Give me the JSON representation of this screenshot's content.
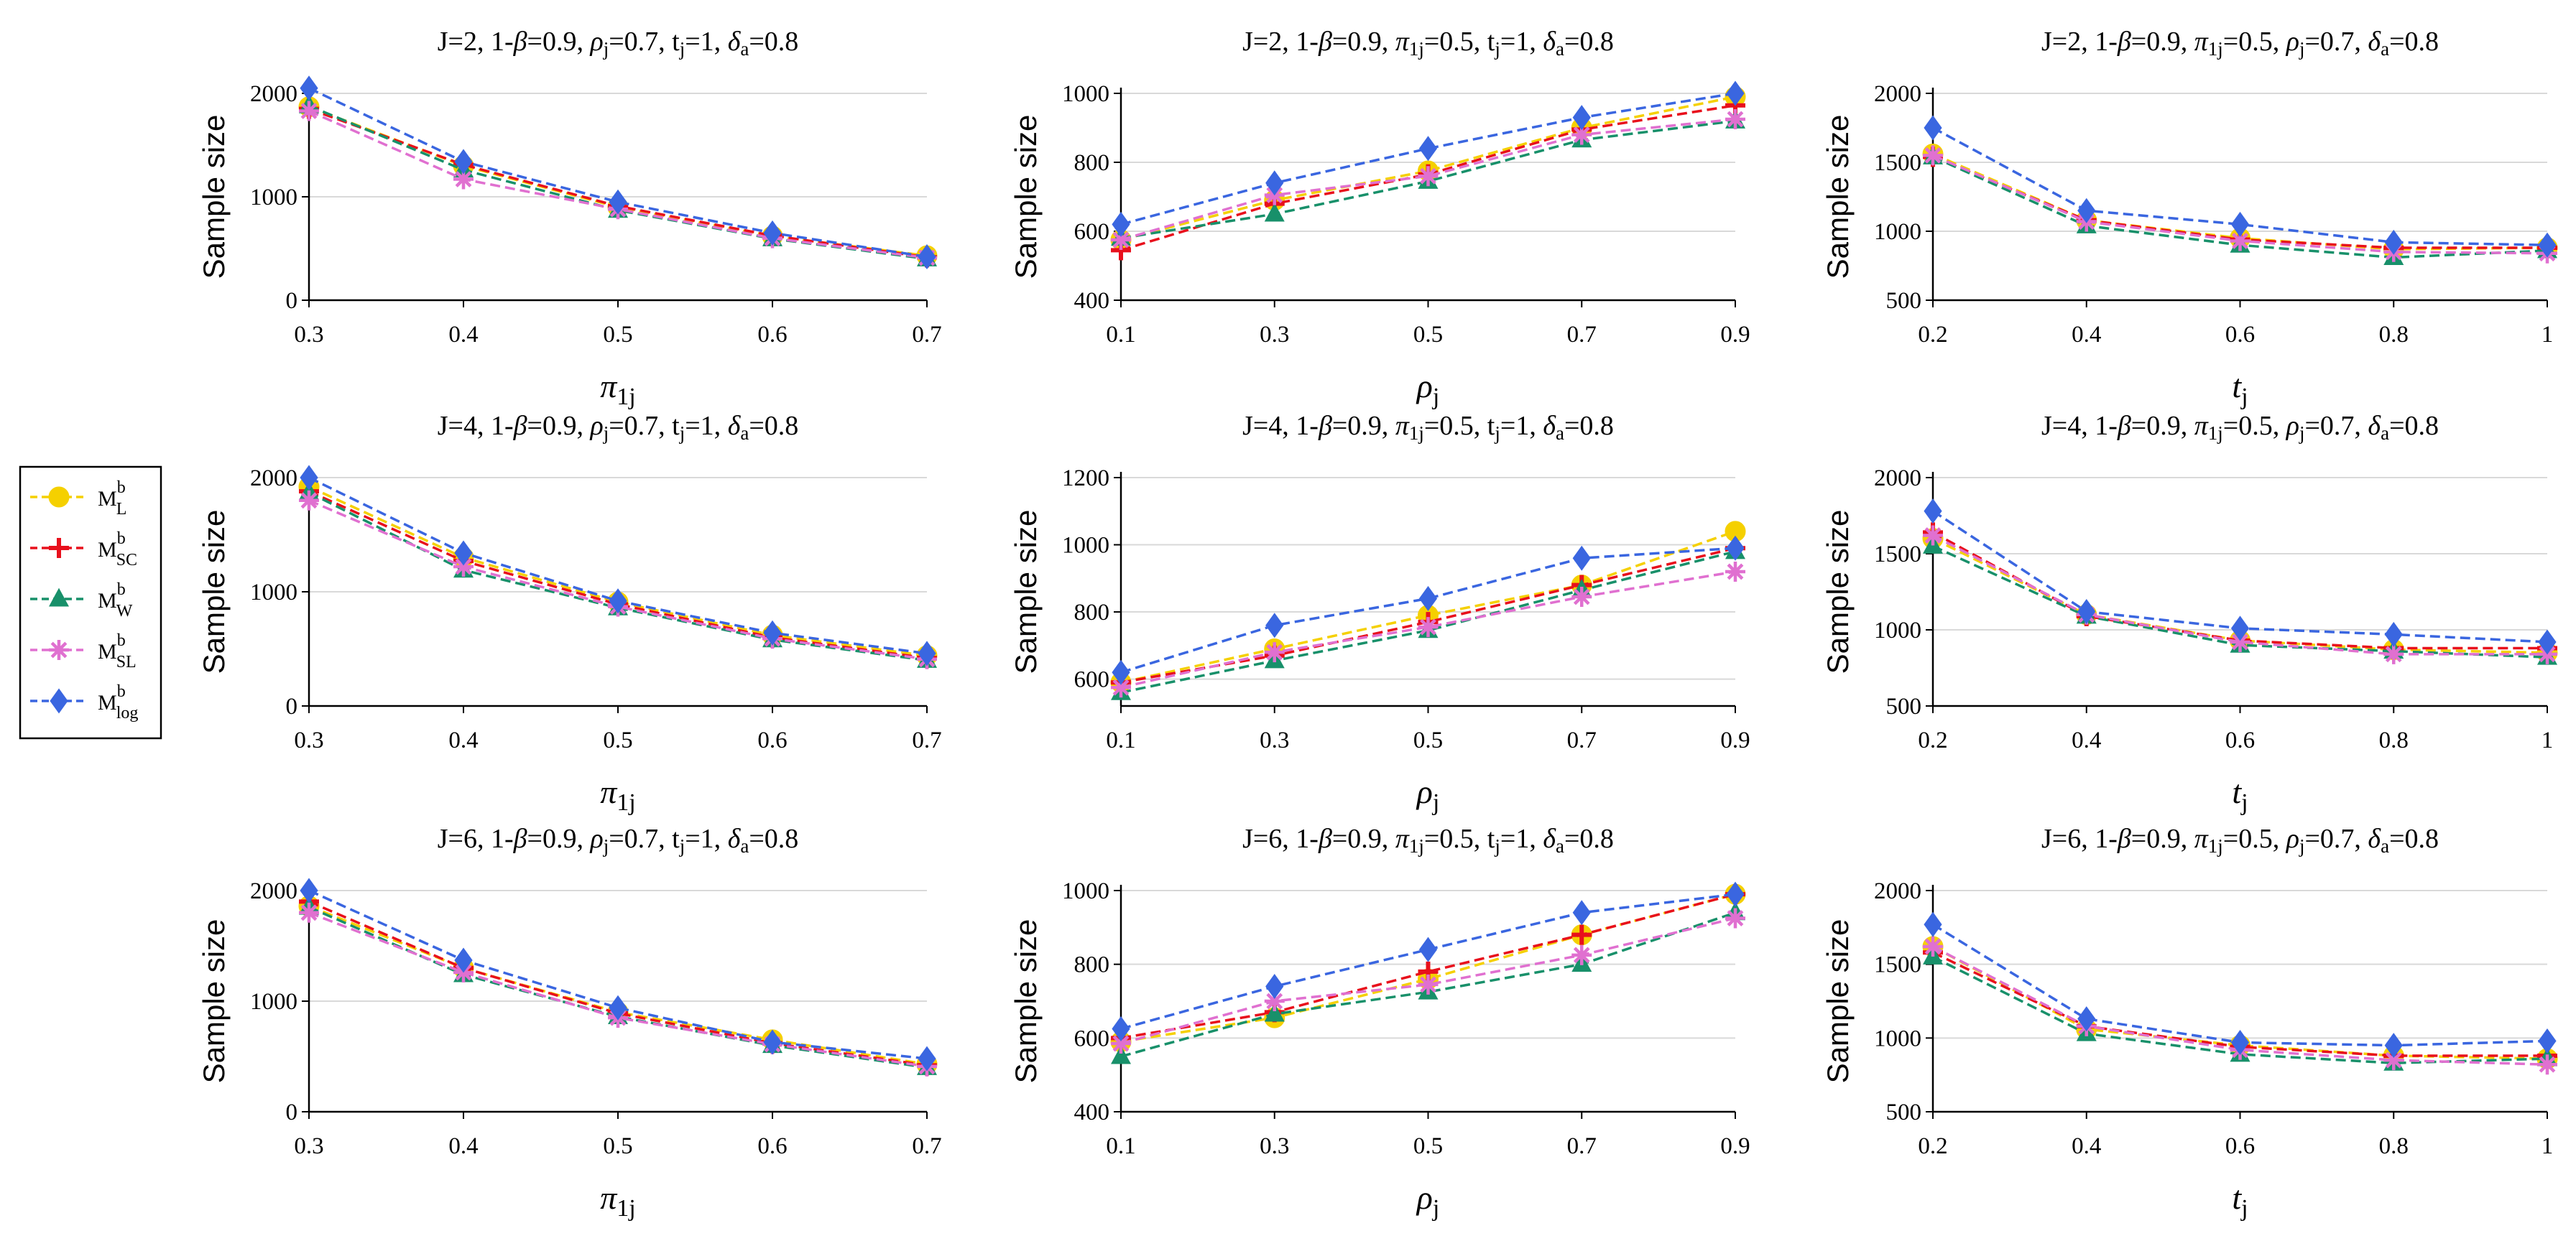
{
  "legend": [
    {
      "base": "M",
      "sup": "b",
      "sub": "L",
      "color": "#F5D000",
      "marker": "circle",
      "dash": "14,7"
    },
    {
      "base": "M",
      "sup": "b",
      "sub": "SC",
      "color": "#E8101C",
      "marker": "plus",
      "dash": "14,7"
    },
    {
      "base": "M",
      "sup": "b",
      "sub": "W",
      "color": "#18906A",
      "marker": "triangle",
      "dash": "14,7"
    },
    {
      "base": "M",
      "sup": "b",
      "sub": "SL",
      "color": "#E070D0",
      "marker": "star",
      "dash": "14,7"
    },
    {
      "base": "M",
      "sup": "b",
      "sub": "log",
      "color": "#3A66E0",
      "marker": "diamond",
      "dash": "14,7"
    }
  ],
  "chart_data": [
    {
      "type": "line",
      "title": "J=2, 1-β=0.9,  ρj=0.7, tj=1, δa=0.8",
      "title_parts": [
        [
          "J=2, 1-",
          ""
        ],
        [
          "β",
          "i"
        ],
        [
          "=0.9,  ",
          ""
        ],
        [
          "ρ",
          "i"
        ],
        [
          "j",
          "sub"
        ],
        [
          "=0.7, t",
          ""
        ],
        [
          "j",
          "sub"
        ],
        [
          "=1, ",
          ""
        ],
        [
          "δ",
          "i"
        ],
        [
          "a",
          "sub"
        ],
        [
          "=0.8",
          ""
        ]
      ],
      "xlabel": "π",
      "xlabel_sub": "1j",
      "ylabel": "Sample size",
      "x": [
        0.3,
        0.4,
        0.5,
        0.6,
        0.7
      ],
      "xticks": [
        "0.3",
        "0.4",
        "0.5",
        "0.6",
        "0.7"
      ],
      "ylim": [
        0,
        2000
      ],
      "yticks": [
        0,
        1000,
        2000
      ],
      "series": [
        {
          "name": "ML",
          "values": [
            1870,
            1300,
            900,
            620,
            430
          ]
        },
        {
          "name": "MSC",
          "values": [
            1850,
            1310,
            910,
            625,
            415
          ]
        },
        {
          "name": "MW",
          "values": [
            1880,
            1260,
            870,
            595,
            400
          ]
        },
        {
          "name": "MSL",
          "values": [
            1830,
            1170,
            880,
            600,
            410
          ]
        },
        {
          "name": "Mlog",
          "values": [
            2050,
            1340,
            950,
            650,
            420
          ]
        }
      ]
    },
    {
      "type": "line",
      "title": "J=2, 1-β=0.9,  π1j=0.5,  tj=1,  δa=0.8",
      "title_parts": [
        [
          "J=2, 1-",
          ""
        ],
        [
          "β",
          "i"
        ],
        [
          "=0.9,  ",
          ""
        ],
        [
          "π",
          "i"
        ],
        [
          "1j",
          "sub"
        ],
        [
          "=0.5,  t",
          ""
        ],
        [
          "j",
          "sub"
        ],
        [
          "=1,  ",
          ""
        ],
        [
          "δ",
          "i"
        ],
        [
          "a",
          "sub"
        ],
        [
          "=0.8",
          ""
        ]
      ],
      "xlabel": "ρ",
      "xlabel_sub": "j",
      "ylabel": "Sample size",
      "x": [
        0.1,
        0.3,
        0.5,
        0.7,
        0.9
      ],
      "xticks": [
        "0.1",
        "0.3",
        "0.5",
        "0.7",
        "0.9"
      ],
      "ylim": [
        400,
        1000
      ],
      "yticks": [
        400,
        600,
        800,
        1000
      ],
      "series": [
        {
          "name": "ML",
          "values": [
            575,
            690,
            775,
            900,
            990
          ]
        },
        {
          "name": "MSC",
          "values": [
            545,
            680,
            765,
            895,
            965
          ]
        },
        {
          "name": "MW",
          "values": [
            580,
            650,
            745,
            865,
            920
          ]
        },
        {
          "name": "MSL",
          "values": [
            575,
            705,
            760,
            880,
            925
          ]
        },
        {
          "name": "Mlog",
          "values": [
            620,
            740,
            840,
            930,
            1000
          ]
        }
      ]
    },
    {
      "type": "line",
      "title": "J=2, 1-β=0.9,  π1j=0.5,  ρj=0.7,  δa=0.8",
      "title_parts": [
        [
          "J=2, 1-",
          ""
        ],
        [
          "β",
          "i"
        ],
        [
          "=0.9,  ",
          ""
        ],
        [
          "π",
          "i"
        ],
        [
          "1j",
          "sub"
        ],
        [
          "=0.5,  ",
          ""
        ],
        [
          "ρ",
          "i"
        ],
        [
          "j",
          "sub"
        ],
        [
          "=0.7,  ",
          ""
        ],
        [
          "δ",
          "i"
        ],
        [
          "a",
          "sub"
        ],
        [
          "=0.8",
          ""
        ]
      ],
      "xlabel": "t",
      "xlabel_sub": "j",
      "ylabel": "Sample size",
      "x": [
        0.2,
        0.4,
        0.6,
        0.8,
        1.0
      ],
      "xticks": [
        "0.2",
        "0.4",
        "0.6",
        "0.8",
        "1"
      ],
      "ylim": [
        500,
        2000
      ],
      "yticks": [
        500,
        1000,
        1500,
        2000
      ],
      "series": [
        {
          "name": "ML",
          "values": [
            1560,
            1080,
            950,
            870,
            880
          ]
        },
        {
          "name": "MSC",
          "values": [
            1540,
            1080,
            940,
            880,
            880
          ]
        },
        {
          "name": "MW",
          "values": [
            1540,
            1040,
            900,
            810,
            860
          ]
        },
        {
          "name": "MSL",
          "values": [
            1550,
            1070,
            930,
            850,
            840
          ]
        },
        {
          "name": "Mlog",
          "values": [
            1750,
            1150,
            1050,
            920,
            900
          ]
        }
      ]
    },
    {
      "type": "line",
      "title": "J=4, 1-β=0.9,  ρj=0.7, tj=1, δa=0.8",
      "title_parts": [
        [
          "J=4, 1-",
          ""
        ],
        [
          "β",
          "i"
        ],
        [
          "=0.9,  ",
          ""
        ],
        [
          "ρ",
          "i"
        ],
        [
          "j",
          "sub"
        ],
        [
          "=0.7, t",
          ""
        ],
        [
          "j",
          "sub"
        ],
        [
          "=1, ",
          ""
        ],
        [
          "δ",
          "i"
        ],
        [
          "a",
          "sub"
        ],
        [
          "=0.8",
          ""
        ]
      ],
      "xlabel": "π",
      "xlabel_sub": "1j",
      "ylabel": "Sample size",
      "x": [
        0.3,
        0.4,
        0.5,
        0.6,
        0.7
      ],
      "xticks": [
        "0.3",
        "0.4",
        "0.5",
        "0.6",
        "0.7"
      ],
      "ylim": [
        0,
        2000
      ],
      "yticks": [
        0,
        1000,
        2000
      ],
      "series": [
        {
          "name": "ML",
          "values": [
            1920,
            1300,
            910,
            620,
            440
          ]
        },
        {
          "name": "MSC",
          "values": [
            1880,
            1270,
            890,
            600,
            420
          ]
        },
        {
          "name": "MW",
          "values": [
            1870,
            1190,
            860,
            580,
            400
          ]
        },
        {
          "name": "MSL",
          "values": [
            1800,
            1220,
            870,
            590,
            410
          ]
        },
        {
          "name": "Mlog",
          "values": [
            2000,
            1340,
            920,
            640,
            460
          ]
        }
      ]
    },
    {
      "type": "line",
      "title": "J=4, 1-β=0.9,  π1j=0.5,  tj=1,  δa=0.8",
      "title_parts": [
        [
          "J=4, 1-",
          ""
        ],
        [
          "β",
          "i"
        ],
        [
          "=0.9,  ",
          ""
        ],
        [
          "π",
          "i"
        ],
        [
          "1j",
          "sub"
        ],
        [
          "=0.5,  t",
          ""
        ],
        [
          "j",
          "sub"
        ],
        [
          "=1,  ",
          ""
        ],
        [
          "δ",
          "i"
        ],
        [
          "a",
          "sub"
        ],
        [
          "=0.8",
          ""
        ]
      ],
      "xlabel": "ρ",
      "xlabel_sub": "j",
      "ylabel": "Sample size",
      "x": [
        0.1,
        0.3,
        0.5,
        0.7,
        0.9
      ],
      "xticks": [
        "0.1",
        "0.3",
        "0.5",
        "0.7",
        "0.9"
      ],
      "ylim": [
        520,
        1200
      ],
      "yticks": [
        600,
        800,
        1000,
        1200
      ],
      "series": [
        {
          "name": "ML",
          "values": [
            590,
            690,
            790,
            880,
            1040
          ]
        },
        {
          "name": "MSC",
          "values": [
            590,
            670,
            770,
            880,
            990
          ]
        },
        {
          "name": "MW",
          "values": [
            560,
            655,
            745,
            865,
            980
          ]
        },
        {
          "name": "MSL",
          "values": [
            575,
            680,
            755,
            845,
            920
          ]
        },
        {
          "name": "Mlog",
          "values": [
            620,
            760,
            840,
            960,
            990
          ]
        }
      ]
    },
    {
      "type": "line",
      "title": "J=4, 1-β=0.9,  π1j=0.5,  ρj=0.7,  δa=0.8",
      "title_parts": [
        [
          "J=4, 1-",
          ""
        ],
        [
          "β",
          "i"
        ],
        [
          "=0.9,  ",
          ""
        ],
        [
          "π",
          "i"
        ],
        [
          "1j",
          "sub"
        ],
        [
          "=0.5,  ",
          ""
        ],
        [
          "ρ",
          "i"
        ],
        [
          "j",
          "sub"
        ],
        [
          "=0.7,  ",
          ""
        ],
        [
          "δ",
          "i"
        ],
        [
          "a",
          "sub"
        ],
        [
          "=0.8",
          ""
        ]
      ],
      "xlabel": "t",
      "xlabel_sub": "j",
      "ylabel": "Sample size",
      "x": [
        0.2,
        0.4,
        0.6,
        0.8,
        1.0
      ],
      "xticks": [
        "0.2",
        "0.4",
        "0.6",
        "0.8",
        "1"
      ],
      "ylim": [
        500,
        2000
      ],
      "yticks": [
        500,
        1000,
        1500,
        2000
      ],
      "series": [
        {
          "name": "ML",
          "values": [
            1600,
            1100,
            930,
            870,
            850
          ]
        },
        {
          "name": "MSC",
          "values": [
            1640,
            1090,
            930,
            880,
            880
          ]
        },
        {
          "name": "MW",
          "values": [
            1550,
            1090,
            900,
            860,
            820
          ]
        },
        {
          "name": "MSL",
          "values": [
            1620,
            1100,
            920,
            840,
            840
          ]
        },
        {
          "name": "Mlog",
          "values": [
            1780,
            1120,
            1010,
            970,
            920
          ]
        }
      ]
    },
    {
      "type": "line",
      "title": "J=6, 1-β=0.9,  ρj=0.7, tj=1, δa=0.8",
      "title_parts": [
        [
          "J=6, 1-",
          ""
        ],
        [
          "β",
          "i"
        ],
        [
          "=0.9,  ",
          ""
        ],
        [
          "ρ",
          "i"
        ],
        [
          "j",
          "sub"
        ],
        [
          "=0.7, t",
          ""
        ],
        [
          "j",
          "sub"
        ],
        [
          "=1, ",
          ""
        ],
        [
          "δ",
          "i"
        ],
        [
          "a",
          "sub"
        ],
        [
          "=0.8",
          ""
        ]
      ],
      "xlabel": "π",
      "xlabel_sub": "1j",
      "ylabel": "Sample size",
      "x": [
        0.3,
        0.4,
        0.5,
        0.6,
        0.7
      ],
      "xticks": [
        "0.3",
        "0.4",
        "0.5",
        "0.6",
        "0.7"
      ],
      "ylim": [
        0,
        2000
      ],
      "yticks": [
        0,
        1000,
        2000
      ],
      "series": [
        {
          "name": "ML",
          "values": [
            1860,
            1300,
            900,
            650,
            430
          ]
        },
        {
          "name": "MSC",
          "values": [
            1900,
            1300,
            890,
            620,
            420
          ]
        },
        {
          "name": "MW",
          "values": [
            1850,
            1240,
            860,
            600,
            400
          ]
        },
        {
          "name": "MSL",
          "values": [
            1800,
            1260,
            850,
            610,
            410
          ]
        },
        {
          "name": "Mlog",
          "values": [
            2000,
            1370,
            940,
            630,
            480
          ]
        }
      ]
    },
    {
      "type": "line",
      "title": "J=6, 1-β=0.9,  π1j=0.5,  tj=1,  δa=0.8",
      "title_parts": [
        [
          "J=6, 1-",
          ""
        ],
        [
          "β",
          "i"
        ],
        [
          "=0.9,  ",
          ""
        ],
        [
          "π",
          "i"
        ],
        [
          "1j",
          "sub"
        ],
        [
          "=0.5,  t",
          ""
        ],
        [
          "j",
          "sub"
        ],
        [
          "=1,  ",
          ""
        ],
        [
          "δ",
          "i"
        ],
        [
          "a",
          "sub"
        ],
        [
          "=0.8",
          ""
        ]
      ],
      "xlabel": "ρ",
      "xlabel_sub": "j",
      "ylabel": "Sample size",
      "x": [
        0.1,
        0.3,
        0.5,
        0.7,
        0.9
      ],
      "xticks": [
        "0.1",
        "0.3",
        "0.5",
        "0.7",
        "0.9"
      ],
      "ylim": [
        400,
        1000
      ],
      "yticks": [
        400,
        600,
        800,
        1000
      ],
      "series": [
        {
          "name": "ML",
          "values": [
            590,
            655,
            760,
            880,
            990
          ]
        },
        {
          "name": "MSC",
          "values": [
            600,
            670,
            780,
            880,
            990
          ]
        },
        {
          "name": "MW",
          "values": [
            550,
            665,
            725,
            800,
            940
          ]
        },
        {
          "name": "MSL",
          "values": [
            585,
            700,
            745,
            825,
            925
          ]
        },
        {
          "name": "Mlog",
          "values": [
            625,
            740,
            840,
            940,
            990
          ]
        }
      ]
    },
    {
      "type": "line",
      "title": "J=6, 1-β=0.9,  π1j=0.5,  ρj=0.7,  δa=0.8",
      "title_parts": [
        [
          "J=6, 1-",
          ""
        ],
        [
          "β",
          "i"
        ],
        [
          "=0.9,  ",
          ""
        ],
        [
          "π",
          "i"
        ],
        [
          "1j",
          "sub"
        ],
        [
          "=0.5,  ",
          ""
        ],
        [
          "ρ",
          "i"
        ],
        [
          "j",
          "sub"
        ],
        [
          "=0.7,  ",
          ""
        ],
        [
          "δ",
          "i"
        ],
        [
          "a",
          "sub"
        ],
        [
          "=0.8",
          ""
        ]
      ],
      "xlabel": "t",
      "xlabel_sub": "j",
      "ylabel": "Sample size",
      "x": [
        0.2,
        0.4,
        0.6,
        0.8,
        1.0
      ],
      "xticks": [
        "0.2",
        "0.4",
        "0.6",
        "0.8",
        "1"
      ],
      "ylim": [
        500,
        2000
      ],
      "yticks": [
        500,
        1000,
        1500,
        2000
      ],
      "series": [
        {
          "name": "ML",
          "values": [
            1620,
            1060,
            950,
            880,
            860
          ]
        },
        {
          "name": "MSC",
          "values": [
            1580,
            1080,
            940,
            880,
            880
          ]
        },
        {
          "name": "MW",
          "values": [
            1550,
            1030,
            890,
            830,
            860
          ]
        },
        {
          "name": "MSL",
          "values": [
            1620,
            1080,
            920,
            850,
            820
          ]
        },
        {
          "name": "Mlog",
          "values": [
            1770,
            1130,
            970,
            950,
            980
          ]
        }
      ]
    }
  ]
}
